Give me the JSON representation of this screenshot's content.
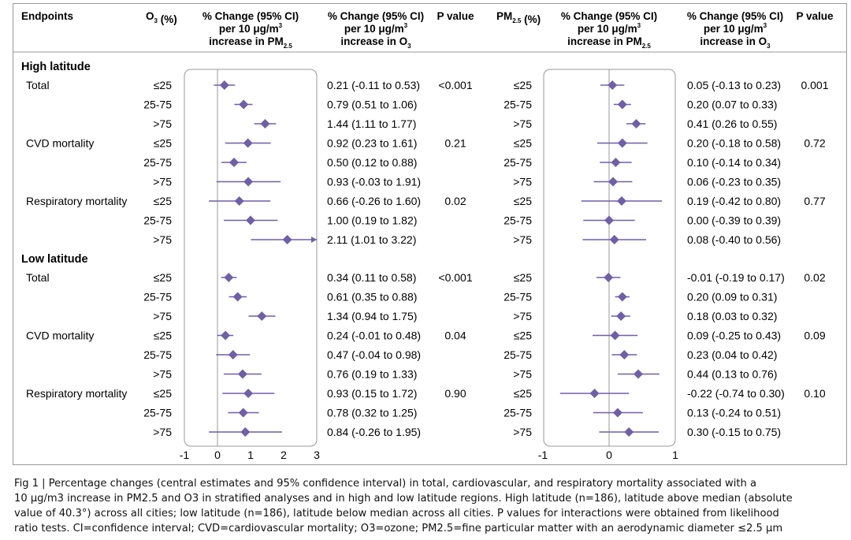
{
  "header": {
    "endpoints": "Endpoints",
    "o3_strata": "O3 (%)",
    "pm_effect": [
      "% Change (95% CI)",
      "per 10 μg/m3",
      "increase in PM2.5"
    ],
    "pvalue": "P value",
    "pm_strata": "PM2.5 (%)",
    "o3_effect": [
      "% Change (95% CI)",
      "per 10 μg/m3",
      "increase in O3"
    ]
  },
  "groups": [
    "High latitude",
    "Low latitude"
  ],
  "outcomes": [
    "Total",
    "CVD mortality",
    "Respiratory mortality"
  ],
  "strata": [
    "≤25",
    "25-75",
    ">75"
  ],
  "rows": [
    {
      "group": "High latitude",
      "outcome": "Total",
      "pm_p": "<0.001",
      "o3_p": "0.001",
      "pm_text": [
        "0.21 (-0.11 to 0.53)",
        "0.79 (0.51 to 1.06)",
        "1.44 (1.11 to 1.77)"
      ],
      "o3_text": [
        "0.05 (-0.13 to 0.23)",
        "0.20 (0.07 to 0.33)",
        "0.41 (0.26 to 0.55)"
      ]
    },
    {
      "group": "High latitude",
      "outcome": "CVD mortality",
      "pm_p": "0.21",
      "o3_p": "0.72",
      "pm_text": [
        "0.92 (0.23 to 1.61)",
        "0.50 (0.12 to 0.88)",
        "0.93 (-0.03 to 1.91)"
      ],
      "o3_text": [
        "0.20 (-0.18 to 0.58)",
        "0.10 (-0.14 to 0.34)",
        "0.06 (-0.23 to 0.35)"
      ]
    },
    {
      "group": "High latitude",
      "outcome": "Respiratory mortality",
      "pm_p": "0.02",
      "o3_p": "0.77",
      "pm_text": [
        "0.66 (-0.26 to 1.60)",
        "1.00 (0.19 to 1.82)",
        "2.11 (1.01 to 3.22)"
      ],
      "o3_text": [
        "0.19 (-0.42 to 0.80)",
        "0.00 (-0.39 to 0.39)",
        "0.08 (-0.40 to 0.56)"
      ]
    },
    {
      "group": "Low latitude",
      "outcome": "Total",
      "pm_p": "<0.001",
      "o3_p": "0.02",
      "pm_text": [
        "0.34 (0.11 to 0.58)",
        "0.61 (0.35 to 0.88)",
        "1.34 (0.94 to 1.75)"
      ],
      "o3_text": [
        "-0.01 (-0.19 to 0.17)",
        "0.20 (0.09 to 0.31)",
        "0.18 (0.03 to 0.32)"
      ]
    },
    {
      "group": "Low latitude",
      "outcome": "CVD mortality",
      "pm_p": "0.04",
      "o3_p": "0.09",
      "pm_text": [
        "0.24 (-0.01 to 0.48)",
        "0.47 (-0.04 to 0.98)",
        "0.76 (0.19 to 1.33)"
      ],
      "o3_text": [
        "0.09 (-0.25 to 0.43)",
        "0.23 (0.04 to 0.42)",
        "0.44 (0.13 to 0.76)"
      ]
    },
    {
      "group": "Low latitude",
      "outcome": "Respiratory mortality",
      "pm_p": "0.90",
      "o3_p": "0.10",
      "pm_text": [
        "0.93 (0.15 to 1.72)",
        "0.78 (0.32 to 1.25)",
        "0.84 (-0.26 to 1.95)"
      ],
      "o3_text": [
        "-0.22 (-0.74 to 0.30)",
        "0.13 (-0.24 to 0.51)",
        "0.30 (-0.15 to 0.75)"
      ]
    }
  ],
  "chart_data": [
    {
      "type": "forest",
      "xlim": [
        -1,
        3
      ],
      "xticks": [
        -1,
        0,
        1,
        2,
        3
      ],
      "marker_color": "#6f5fa8",
      "estimates": [
        0.21,
        0.79,
        1.44,
        0.92,
        0.5,
        0.93,
        0.66,
        1.0,
        2.11,
        0.34,
        0.61,
        1.34,
        0.24,
        0.47,
        0.76,
        0.93,
        0.78,
        0.84
      ],
      "lower": [
        -0.11,
        0.51,
        1.11,
        0.23,
        0.12,
        -0.03,
        -0.26,
        0.19,
        1.01,
        0.11,
        0.35,
        0.94,
        -0.01,
        -0.04,
        0.19,
        0.15,
        0.32,
        -0.26
      ],
      "upper": [
        0.53,
        1.06,
        1.77,
        1.61,
        0.88,
        1.91,
        1.6,
        1.82,
        3.22,
        0.58,
        0.88,
        1.75,
        0.48,
        0.98,
        1.33,
        1.72,
        1.25,
        1.95
      ]
    },
    {
      "type": "forest",
      "xlim": [
        -1,
        1
      ],
      "xticks": [
        -1,
        0,
        1
      ],
      "marker_color": "#6f5fa8",
      "estimates": [
        0.05,
        0.2,
        0.41,
        0.2,
        0.1,
        0.06,
        0.19,
        0.0,
        0.08,
        -0.01,
        0.2,
        0.18,
        0.09,
        0.23,
        0.44,
        -0.22,
        0.13,
        0.3
      ],
      "lower": [
        -0.13,
        0.07,
        0.26,
        -0.18,
        -0.14,
        -0.23,
        -0.42,
        -0.39,
        -0.4,
        -0.19,
        0.09,
        0.03,
        -0.25,
        0.04,
        0.13,
        -0.74,
        -0.24,
        -0.15
      ],
      "upper": [
        0.23,
        0.33,
        0.55,
        0.58,
        0.34,
        0.35,
        0.8,
        0.39,
        0.56,
        0.17,
        0.31,
        0.32,
        0.43,
        0.42,
        0.76,
        0.3,
        0.51,
        0.75
      ]
    }
  ],
  "caption": [
    "Fig 1 | Percentage changes (central estimates and 95% confidence interval) in total, cardiovascular, and respiratory mortality associated with a",
    "10 μg/m3 increase in PM2.5 and O3 in stratified analyses and in high and low latitude regions. High latitude (n=186), latitude above median (absolute",
    "value of 40.3°) across all cities; low latitude (n=186), latitude below median across all cities. P values for interactions were obtained from likelihood",
    "ratio tests. CI=confidence interval; CVD=cardiovascular mortality; O3=ozone; PM2.5=fine particular matter with an aerodynamic diameter ≤2.5 μm"
  ]
}
